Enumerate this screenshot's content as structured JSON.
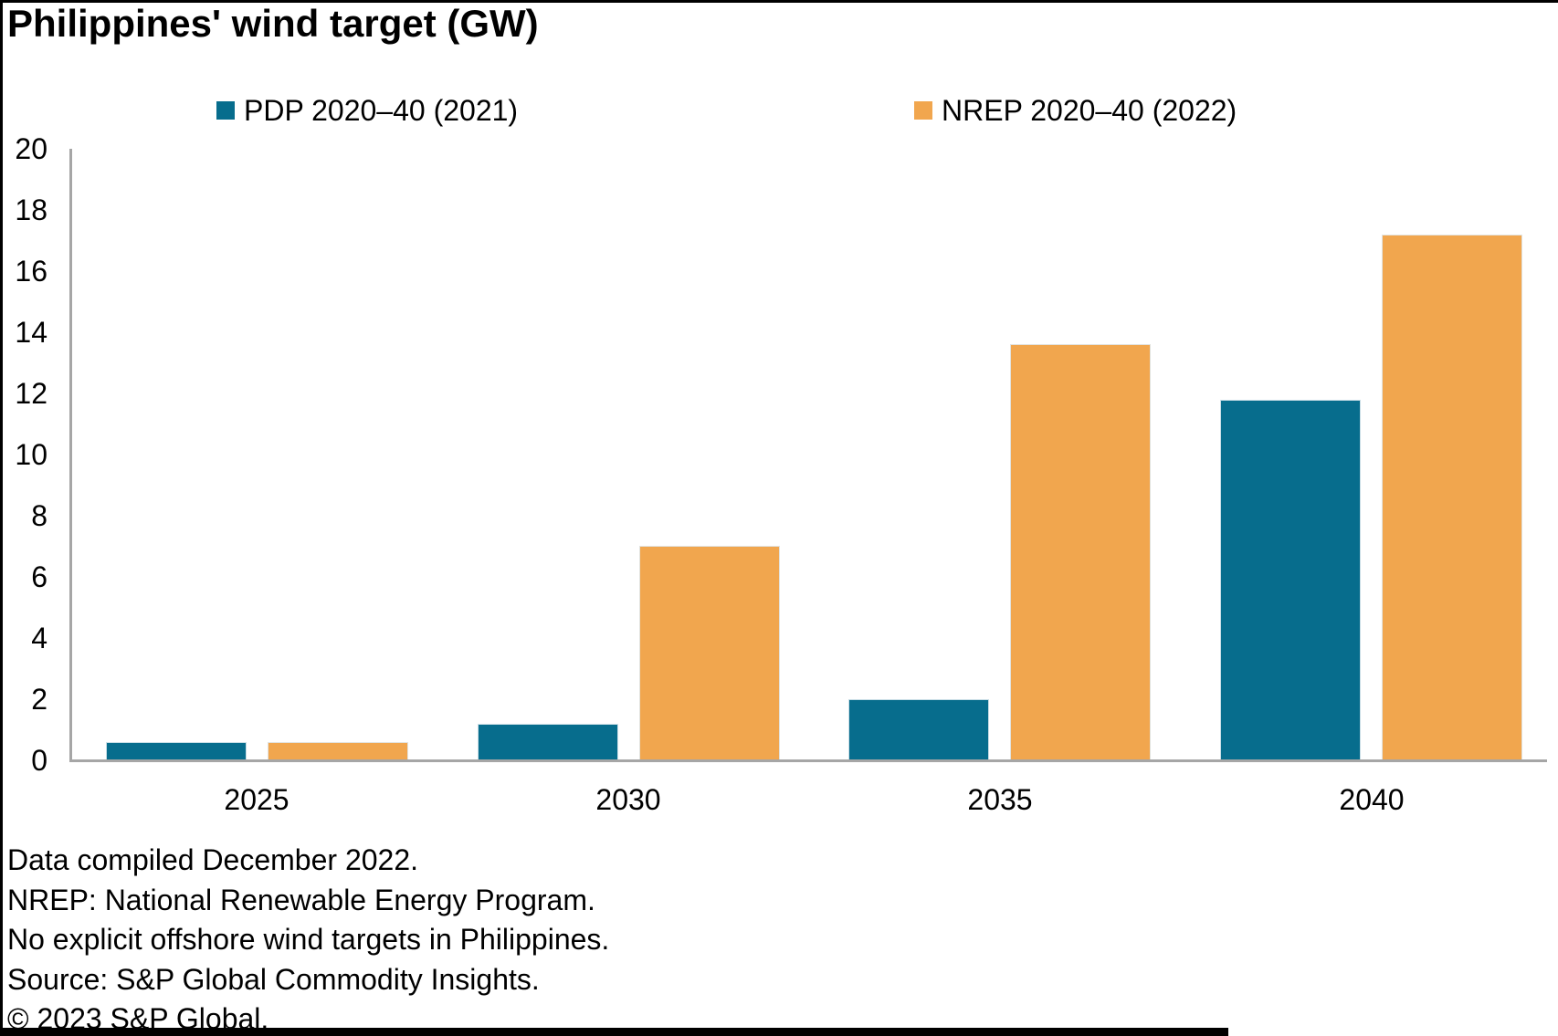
{
  "title": "Philippines' wind target (GW)",
  "chart_data": {
    "type": "bar",
    "categories": [
      "2025",
      "2030",
      "2035",
      "2040"
    ],
    "series": [
      {
        "name": "PDP 2020–40 (2021)",
        "color": "#076d8d",
        "values": [
          0.6,
          1.2,
          2.0,
          11.8
        ]
      },
      {
        "name": "NREP 2020–40 (2022)",
        "color": "#f1a64e",
        "values": [
          0.6,
          7.0,
          13.6,
          17.2
        ]
      }
    ],
    "ylabel": "",
    "xlabel": "",
    "ylim": [
      0,
      20
    ],
    "ytick_step": 2,
    "grid": false,
    "legend_position": "top"
  },
  "footnotes": [
    "Data compiled December 2022.",
    "NREP: National Renewable Energy Program.",
    "No explicit offshore wind targets in Philippines.",
    "Source: S&P Global Commodity Insights.",
    "© 2023 S&P Global."
  ],
  "colors": {
    "axis": "#a6a6a6",
    "text": "#000000",
    "background": "#ffffff",
    "border": "#000000"
  }
}
